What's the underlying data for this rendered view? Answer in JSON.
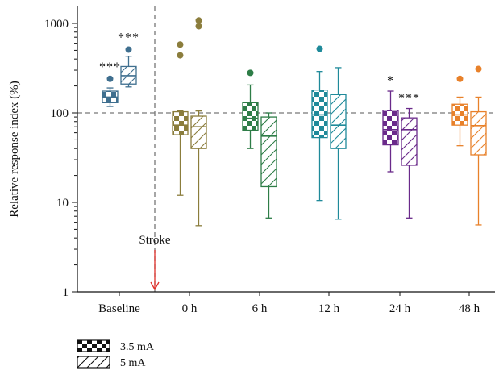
{
  "chart_data": {
    "type": "box",
    "ylabel": "Relative response index (%)",
    "y_scale": "log",
    "ylim": [
      1,
      1500
    ],
    "yticks": [
      1,
      10,
      100,
      1000
    ],
    "ytick_labels": [
      "1",
      "10",
      "100",
      "1000"
    ],
    "reference_line": 100,
    "categories": [
      "Baseline",
      "0 h",
      "6 h",
      "12 h",
      "24 h",
      "48 h"
    ],
    "series": [
      {
        "name": "3.5 mA",
        "pattern": "checkered",
        "boxes": [
          {
            "category": "Baseline",
            "color": "#3f6f8f",
            "whisker_low": 118,
            "q1": 130,
            "median": 150,
            "q3": 175,
            "whisker_high": 190,
            "outliers": [
              240
            ],
            "sig": "***"
          },
          {
            "category": "0 h",
            "color": "#8b7d3c",
            "whisker_low": 12,
            "q1": 57,
            "median": 73,
            "q3": 103,
            "whisker_high": 105,
            "outliers": [
              440,
              580
            ],
            "sig": ""
          },
          {
            "category": "6 h",
            "color": "#2e7d47",
            "whisker_low": 40,
            "q1": 64,
            "median": 87,
            "q3": 130,
            "whisker_high": 205,
            "outliers": [
              280
            ],
            "sig": ""
          },
          {
            "category": "12 h",
            "color": "#1f8a9a",
            "whisker_low": 10.5,
            "q1": 53,
            "median": 95,
            "q3": 180,
            "whisker_high": 290,
            "outliers": [
              520
            ],
            "sig": ""
          },
          {
            "category": "24 h",
            "color": "#6a2a8a",
            "whisker_low": 22,
            "q1": 44,
            "median": 65,
            "q3": 107,
            "whisker_high": 175,
            "outliers": [],
            "sig": "*"
          },
          {
            "category": "48 h",
            "color": "#e8812a",
            "whisker_low": 43,
            "q1": 73,
            "median": 95,
            "q3": 125,
            "whisker_high": 150,
            "outliers": [
              240
            ],
            "sig": ""
          }
        ]
      },
      {
        "name": "5 mA",
        "pattern": "hatched",
        "boxes": [
          {
            "category": "Baseline",
            "color": "#3f6f8f",
            "whisker_low": 195,
            "q1": 210,
            "median": 260,
            "q3": 330,
            "whisker_high": 430,
            "outliers": [
              510
            ],
            "sig": "***"
          },
          {
            "category": "0 h",
            "color": "#8b7d3c",
            "whisker_low": 5.5,
            "q1": 40,
            "median": 70,
            "q3": 92,
            "whisker_high": 105,
            "outliers": [
              930,
              1080
            ],
            "sig": ""
          },
          {
            "category": "6 h",
            "color": "#2e7d47",
            "whisker_low": 6.7,
            "q1": 15,
            "median": 55,
            "q3": 90,
            "whisker_high": 100,
            "outliers": [],
            "sig": ""
          },
          {
            "category": "12 h",
            "color": "#1f8a9a",
            "whisker_low": 6.5,
            "q1": 40,
            "median": 73,
            "q3": 160,
            "whisker_high": 320,
            "outliers": [],
            "sig": ""
          },
          {
            "category": "24 h",
            "color": "#6a2a8a",
            "whisker_low": 6.7,
            "q1": 26,
            "median": 65,
            "q3": 88,
            "whisker_high": 112,
            "outliers": [],
            "sig": "***"
          },
          {
            "category": "48 h",
            "color": "#e8812a",
            "whisker_low": 5.6,
            "q1": 34,
            "median": 72,
            "q3": 103,
            "whisker_high": 150,
            "outliers": [
              310
            ],
            "sig": ""
          }
        ]
      }
    ],
    "annotation": {
      "label": "Stroke",
      "arrow_color": "#e0302a"
    },
    "legend": {
      "position": "bottom-left",
      "entries": [
        {
          "label": "3.5 mA",
          "pattern": "checkered"
        },
        {
          "label": "5 mA",
          "pattern": "hatched"
        }
      ]
    }
  }
}
